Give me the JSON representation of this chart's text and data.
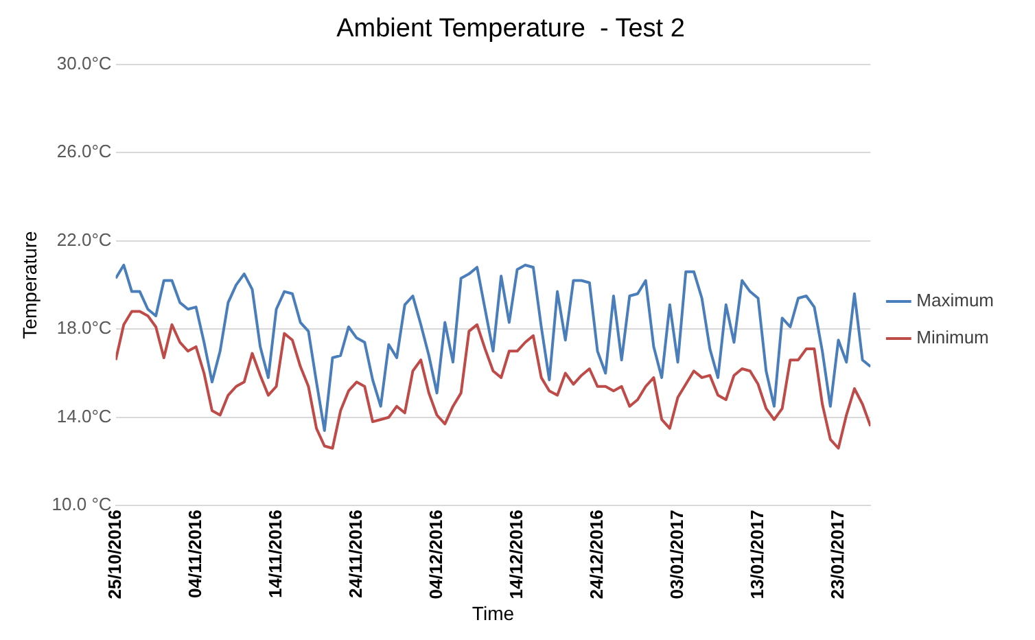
{
  "chart_data": {
    "type": "line",
    "title": "Ambient Temperature  - Test 2",
    "xlabel": "Time",
    "ylabel": "Temperature",
    "x": [
      "2016-10-25",
      "2016-10-26",
      "2016-10-27",
      "2016-10-28",
      "2016-10-29",
      "2016-10-30",
      "2016-10-31",
      "2016-11-01",
      "2016-11-02",
      "2016-11-03",
      "2016-11-04",
      "2016-11-05",
      "2016-11-06",
      "2016-11-07",
      "2016-11-08",
      "2016-11-09",
      "2016-11-10",
      "2016-11-11",
      "2016-11-12",
      "2016-11-13",
      "2016-11-14",
      "2016-11-15",
      "2016-11-16",
      "2016-11-17",
      "2016-11-18",
      "2016-11-19",
      "2016-11-20",
      "2016-11-21",
      "2016-11-22",
      "2016-11-23",
      "2016-11-24",
      "2016-11-25",
      "2016-11-26",
      "2016-11-27",
      "2016-11-28",
      "2016-11-29",
      "2016-11-30",
      "2016-12-01",
      "2016-12-02",
      "2016-12-03",
      "2016-12-04",
      "2016-12-05",
      "2016-12-06",
      "2016-12-07",
      "2016-12-08",
      "2016-12-09",
      "2016-12-10",
      "2016-12-11",
      "2016-12-12",
      "2016-12-13",
      "2016-12-14",
      "2016-12-15",
      "2016-12-16",
      "2016-12-17",
      "2016-12-18",
      "2016-12-19",
      "2016-12-20",
      "2016-12-21",
      "2016-12-22",
      "2016-12-23",
      "2016-12-24",
      "2016-12-25",
      "2016-12-26",
      "2016-12-27",
      "2016-12-28",
      "2016-12-29",
      "2016-12-30",
      "2016-12-31",
      "2017-01-01",
      "2017-01-02",
      "2017-01-03",
      "2017-01-04",
      "2017-01-05",
      "2017-01-06",
      "2017-01-07",
      "2017-01-08",
      "2017-01-09",
      "2017-01-10",
      "2017-01-11",
      "2017-01-12",
      "2017-01-13",
      "2017-01-14",
      "2017-01-15",
      "2017-01-16",
      "2017-01-17",
      "2017-01-18",
      "2017-01-19",
      "2017-01-20",
      "2017-01-21",
      "2017-01-22",
      "2017-01-23",
      "2017-01-24",
      "2017-01-25",
      "2017-01-26",
      "2017-01-27"
    ],
    "series": [
      {
        "name": "Maximum",
        "color": "#4a7ebb",
        "values": [
          20.3,
          20.9,
          19.7,
          19.7,
          18.9,
          18.6,
          20.2,
          20.2,
          19.2,
          18.9,
          19.0,
          17.4,
          15.6,
          17.0,
          19.2,
          20.0,
          20.5,
          19.8,
          17.2,
          15.8,
          18.9,
          19.7,
          19.6,
          18.3,
          17.9,
          15.6,
          13.4,
          16.7,
          16.8,
          18.1,
          17.6,
          17.4,
          15.7,
          14.5,
          17.3,
          16.7,
          19.1,
          19.5,
          18.2,
          16.8,
          15.1,
          18.3,
          16.5,
          20.3,
          20.5,
          20.8,
          18.9,
          17.0,
          20.4,
          18.3,
          20.7,
          20.9,
          20.8,
          18.1,
          15.7,
          19.7,
          17.5,
          20.2,
          20.2,
          20.1,
          17.0,
          16.0,
          19.5,
          16.6,
          19.5,
          19.6,
          20.2,
          17.2,
          15.8,
          19.1,
          16.5,
          20.6,
          20.6,
          19.4,
          17.1,
          15.8,
          19.1,
          17.4,
          20.2,
          19.7,
          19.4,
          16.1,
          14.5,
          18.5,
          18.1,
          19.4,
          19.5,
          19.0,
          17.0,
          14.5,
          17.5,
          16.5,
          19.6,
          16.6,
          16.3
        ]
      },
      {
        "name": "Minimum",
        "color": "#be4b48",
        "values": [
          16.6,
          18.2,
          18.8,
          18.8,
          18.6,
          18.1,
          16.7,
          18.2,
          17.4,
          17.0,
          17.2,
          16.0,
          14.3,
          14.1,
          15.0,
          15.4,
          15.6,
          16.9,
          15.9,
          15.0,
          15.4,
          17.8,
          17.5,
          16.3,
          15.4,
          13.5,
          12.7,
          12.6,
          14.3,
          15.2,
          15.6,
          15.4,
          13.8,
          13.9,
          14.0,
          14.5,
          14.2,
          16.1,
          16.6,
          15.1,
          14.1,
          13.7,
          14.5,
          15.1,
          17.9,
          18.2,
          17.1,
          16.1,
          15.8,
          17.0,
          17.0,
          17.4,
          17.7,
          15.8,
          15.2,
          15.0,
          16.0,
          15.5,
          15.9,
          16.2,
          15.4,
          15.4,
          15.2,
          15.4,
          14.5,
          14.8,
          15.4,
          15.8,
          13.9,
          13.5,
          14.9,
          15.5,
          16.1,
          15.8,
          15.9,
          15.0,
          14.8,
          15.9,
          16.2,
          16.1,
          15.5,
          14.4,
          13.9,
          14.4,
          16.6,
          16.6,
          17.1,
          17.1,
          14.6,
          13.0,
          12.6,
          14.1,
          15.3,
          14.6,
          13.6
        ]
      }
    ],
    "xlim": [
      "2016-10-25",
      "2017-01-27"
    ],
    "xticks": [
      {
        "value": "2016-10-25",
        "label": "25/10/2016"
      },
      {
        "value": "2016-11-04",
        "label": "04/11/2016"
      },
      {
        "value": "2016-11-14",
        "label": "14/11/2016"
      },
      {
        "value": "2016-11-24",
        "label": "24/11/2016"
      },
      {
        "value": "2016-12-04",
        "label": "04/12/2016"
      },
      {
        "value": "2016-12-14",
        "label": "14/12/2016"
      },
      {
        "value": "2016-12-24",
        "label": "24/12/2016"
      },
      {
        "value": "2017-01-03",
        "label": "03/01/2017"
      },
      {
        "value": "2017-01-13",
        "label": "13/01/2017"
      },
      {
        "value": "2017-01-23",
        "label": "23/01/2017"
      }
    ],
    "ylim": [
      10,
      30
    ],
    "yticks": [
      {
        "value": 10,
        "label": "10.0 °C"
      },
      {
        "value": 14,
        "label": "14.0°C"
      },
      {
        "value": 18,
        "label": "18.0°C"
      },
      {
        "value": 22,
        "label": "22.0°C"
      },
      {
        "value": 26,
        "label": "26.0°C"
      },
      {
        "value": 30,
        "label": "30.0°C"
      }
    ],
    "grid": "y",
    "legend": "right",
    "marker": "none",
    "line_style": "solid"
  }
}
